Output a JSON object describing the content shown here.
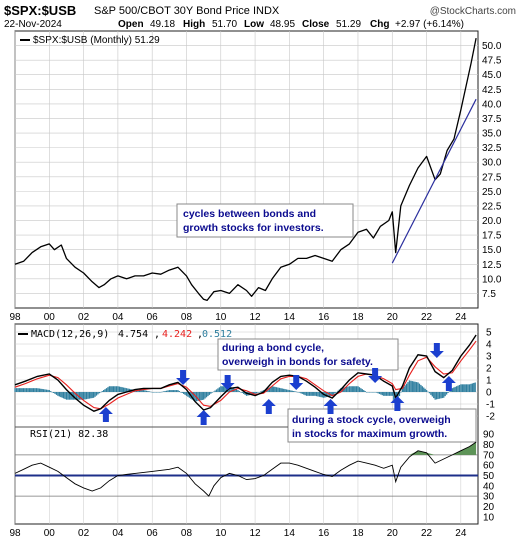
{
  "header": {
    "symbol": "$SPX:$USB",
    "description": "S&P 500/CBOT 30Y Bond Price INDX",
    "date": "22-Nov-2024",
    "open_label": "Open",
    "open": "49.18",
    "high_label": "High",
    "high": "51.70",
    "low_label": "Low",
    "low": "48.95",
    "close_label": "Close",
    "close": "51.29",
    "chg_label": "Chg",
    "chg": "+2.97 (+6.14%)",
    "watermark": "@StockCharts.com"
  },
  "legends": {
    "price": "$SPX:$USB (Monthly) 51.29",
    "macd_name": "MACD(12,26,9)",
    "macd_value": "4.754",
    "signal_value": "4.242",
    "histogram_value": "0.512",
    "rsi": "RSI(21) 82.38"
  },
  "annotations": {
    "cycles": [
      "cycles between bonds and",
      "growth stocks for investors."
    ],
    "bond_cycle": [
      "during a bond cycle,",
      "overweigh in bonds for safety."
    ],
    "stock_cycle": [
      "during a stock cycle, overweigh",
      "in stocks for maximum growth."
    ]
  },
  "colors": {
    "price_line": "#000000",
    "macd_line": "#000000",
    "signal_line": "#e8201e",
    "histogram": "#2f7f9f",
    "trendline": "#2b2f9e",
    "arrow": "#1b3fcf",
    "annotation_text": "#0b0b8f",
    "rsi_fill": "#5d9457",
    "rsi_level_line": "#1d2f8a",
    "grid": "#c8c8c8"
  },
  "chart_data": [
    {
      "type": "line",
      "panel": "price",
      "title": "$SPX:$USB (Monthly) 51.29",
      "x_ticks": [
        "98",
        "00",
        "02",
        "04",
        "06",
        "08",
        "10",
        "12",
        "14",
        "16",
        "18",
        "20",
        "22",
        "24"
      ],
      "x_range": [
        1998,
        2025
      ],
      "y_ticks": [
        "7.5",
        "10.0",
        "12.5",
        "15.0",
        "17.5",
        "20.0",
        "22.5",
        "25.0",
        "27.5",
        "30.0",
        "32.5",
        "35.0",
        "37.5",
        "40.0",
        "42.5",
        "45.0",
        "47.5",
        "50.0"
      ],
      "ylim": [
        5,
        52.5
      ],
      "series": [
        {
          "name": "$SPX:$USB",
          "x": [
            1998.0,
            1998.5,
            1999.0,
            1999.5,
            2000.0,
            2000.3,
            2000.7,
            2001.0,
            2001.5,
            2002.0,
            2002.5,
            2002.9,
            2003.2,
            2003.6,
            2004.0,
            2004.5,
            2005.0,
            2005.5,
            2006.0,
            2006.5,
            2007.0,
            2007.5,
            2008.0,
            2008.3,
            2008.7,
            2009.0,
            2009.2,
            2009.6,
            2010.0,
            2010.5,
            2011.0,
            2011.5,
            2011.8,
            2012.2,
            2012.6,
            2013.0,
            2013.5,
            2014.0,
            2014.5,
            2015.0,
            2015.5,
            2016.0,
            2016.5,
            2017.0,
            2017.5,
            2018.0,
            2018.5,
            2018.9,
            2019.3,
            2019.8,
            2020.0,
            2020.2,
            2020.5,
            2021.0,
            2021.5,
            2022.0,
            2022.5,
            2022.8,
            2023.2,
            2023.6,
            2024.0,
            2024.3,
            2024.6,
            2024.89
          ],
          "y": [
            12.5,
            13.0,
            14.5,
            15.5,
            16.0,
            15.0,
            15.8,
            13.5,
            12.0,
            11.0,
            9.5,
            8.5,
            9.0,
            10.0,
            10.5,
            10.0,
            10.5,
            10.5,
            11.0,
            10.8,
            11.5,
            12.0,
            10.5,
            9.0,
            7.5,
            6.5,
            6.3,
            7.8,
            8.0,
            7.5,
            9.0,
            8.0,
            7.0,
            8.5,
            8.0,
            10.0,
            12.0,
            12.5,
            13.5,
            13.5,
            14.0,
            13.5,
            13.0,
            15.0,
            16.0,
            18.0,
            18.5,
            17.0,
            19.0,
            20.0,
            21.5,
            14.5,
            22.5,
            26.0,
            29.0,
            31.0,
            27.0,
            28.0,
            32.0,
            34.0,
            39.0,
            43.0,
            47.0,
            51.29
          ]
        },
        {
          "name": "trendline",
          "x": [
            2020.0,
            2024.89
          ],
          "y": [
            12.7,
            40.8
          ]
        }
      ]
    },
    {
      "type": "line",
      "panel": "macd",
      "title": "MACD(12,26,9) 4.754, 4.242, 0.512",
      "y_ticks": [
        "-2",
        "-1",
        "0",
        "1",
        "2",
        "3",
        "4",
        "5"
      ],
      "ylim": [
        -3,
        5.5
      ],
      "series": [
        {
          "name": "MACD",
          "x": [
            1998.0,
            1998.6,
            1999.3,
            2000.0,
            2000.5,
            2001.0,
            2001.5,
            2002.0,
            2002.6,
            2003.0,
            2003.5,
            2004.0,
            2004.5,
            2005.0,
            2005.5,
            2006.0,
            2006.5,
            2007.0,
            2007.5,
            2008.0,
            2008.5,
            2009.0,
            2009.4,
            2010.0,
            2010.5,
            2011.0,
            2011.5,
            2012.0,
            2012.5,
            2013.0,
            2013.5,
            2014.0,
            2014.5,
            2015.0,
            2015.5,
            2016.0,
            2016.5,
            2017.0,
            2017.5,
            2018.0,
            2018.5,
            2019.0,
            2019.5,
            2020.0,
            2020.2,
            2020.6,
            2021.0,
            2021.5,
            2022.0,
            2022.5,
            2023.0,
            2023.5,
            2024.0,
            2024.5,
            2024.89
          ],
          "y": [
            0.6,
            0.9,
            1.3,
            1.5,
            1.0,
            0.2,
            -0.5,
            -1.1,
            -1.6,
            -1.4,
            -0.7,
            -0.2,
            0.0,
            0.2,
            0.3,
            0.3,
            0.3,
            0.6,
            0.8,
            0.2,
            -0.8,
            -1.5,
            -1.3,
            -0.4,
            0.3,
            0.4,
            -0.1,
            -0.3,
            0.0,
            0.8,
            1.3,
            1.4,
            1.3,
            0.9,
            0.4,
            -0.2,
            -0.5,
            0.2,
            1.0,
            1.6,
            1.5,
            1.4,
            0.9,
            0.5,
            -0.5,
            0.5,
            2.0,
            3.1,
            3.0,
            1.7,
            1.2,
            1.8,
            3.0,
            3.9,
            4.754
          ]
        },
        {
          "name": "Signal",
          "x": [
            1998.0,
            1998.6,
            1999.3,
            2000.0,
            2000.5,
            2001.0,
            2001.5,
            2002.0,
            2002.6,
            2003.0,
            2003.5,
            2004.0,
            2004.5,
            2005.0,
            2005.5,
            2006.0,
            2006.5,
            2007.0,
            2007.5,
            2008.0,
            2008.5,
            2009.0,
            2009.4,
            2010.0,
            2010.5,
            2011.0,
            2011.5,
            2012.0,
            2012.5,
            2013.0,
            2013.5,
            2014.0,
            2014.5,
            2015.0,
            2015.5,
            2016.0,
            2016.5,
            2017.0,
            2017.5,
            2018.0,
            2018.5,
            2019.0,
            2019.5,
            2020.0,
            2020.2,
            2020.6,
            2021.0,
            2021.5,
            2022.0,
            2022.5,
            2023.0,
            2023.5,
            2024.0,
            2024.5,
            2024.89
          ],
          "y": [
            0.4,
            0.7,
            1.1,
            1.4,
            1.2,
            0.6,
            -0.1,
            -0.7,
            -1.3,
            -1.4,
            -1.0,
            -0.5,
            -0.2,
            0.1,
            0.2,
            0.3,
            0.3,
            0.5,
            0.7,
            0.4,
            -0.3,
            -1.1,
            -1.2,
            -0.7,
            0.0,
            0.3,
            0.1,
            -0.2,
            -0.1,
            0.5,
            1.1,
            1.3,
            1.3,
            1.1,
            0.6,
            0.1,
            -0.3,
            0.0,
            0.7,
            1.3,
            1.5,
            1.4,
            1.1,
            0.7,
            0.2,
            0.3,
            1.4,
            2.6,
            2.9,
            2.1,
            1.5,
            1.6,
            2.6,
            3.5,
            4.242
          ]
        }
      ]
    },
    {
      "type": "area",
      "panel": "rsi",
      "title": "RSI(21) 82.38",
      "y_ticks": [
        "10",
        "20",
        "30",
        "40",
        "50",
        "60",
        "70",
        "80",
        "90"
      ],
      "ylim": [
        3,
        97
      ],
      "reference_lines": [
        50,
        70,
        30
      ],
      "series": [
        {
          "name": "RSI(21)",
          "x": [
            1998.0,
            1998.5,
            1999.0,
            1999.5,
            2000.0,
            2000.5,
            2001.0,
            2001.5,
            2002.0,
            2002.5,
            2003.0,
            2003.5,
            2004.0,
            2005.0,
            2006.0,
            2007.0,
            2007.5,
            2008.0,
            2008.5,
            2009.0,
            2009.3,
            2009.6,
            2010.0,
            2010.5,
            2011.0,
            2011.5,
            2012.0,
            2012.5,
            2013.0,
            2013.5,
            2014.0,
            2014.5,
            2015.0,
            2015.5,
            2016.0,
            2016.5,
            2017.0,
            2017.5,
            2018.0,
            2018.5,
            2019.0,
            2019.5,
            2020.0,
            2020.2,
            2020.5,
            2021.0,
            2021.5,
            2022.0,
            2022.5,
            2023.0,
            2023.5,
            2024.0,
            2024.5,
            2024.89
          ],
          "y": [
            52,
            56,
            60,
            62,
            58,
            54,
            48,
            42,
            38,
            35,
            38,
            45,
            50,
            52,
            54,
            56,
            58,
            52,
            42,
            35,
            30,
            40,
            48,
            52,
            50,
            46,
            47,
            50,
            56,
            62,
            62,
            60,
            57,
            54,
            51,
            49,
            55,
            60,
            64,
            62,
            60,
            57,
            60,
            44,
            58,
            68,
            74,
            72,
            62,
            66,
            70,
            74,
            78,
            82.38
          ]
        }
      ]
    }
  ]
}
